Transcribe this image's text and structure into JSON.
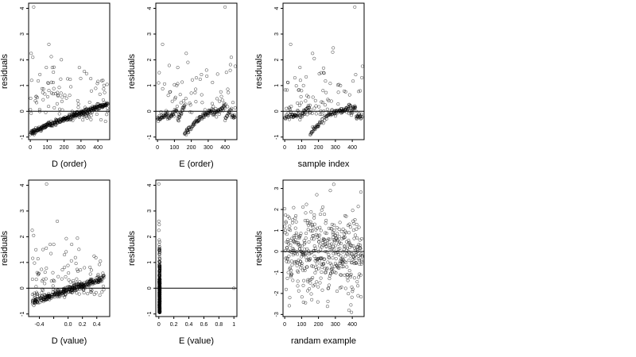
{
  "chart_data": [
    {
      "type": "scatter",
      "xlabel": "D (order)",
      "ylabel": "residuals",
      "xlim": [
        -10,
        470
      ],
      "ylim": [
        -1.1,
        4.2
      ],
      "xticks": [
        0,
        100,
        200,
        300,
        400
      ],
      "yticks": [
        -1,
        0,
        1,
        2,
        3,
        4
      ],
      "hline": 0,
      "pattern": "rising",
      "outliers": [
        [
          20,
          4.05
        ],
        [
          110,
          2.6
        ],
        [
          5,
          2.25
        ],
        [
          15,
          2.1
        ],
        [
          95,
          1.7
        ],
        [
          130,
          1.7
        ],
        [
          180,
          1.25
        ],
        [
          290,
          1.7
        ],
        [
          320,
          1.55
        ],
        [
          430,
          1.2
        ]
      ]
    },
    {
      "type": "scatter",
      "xlabel": "E (order)",
      "ylabel": "residuals",
      "xlim": [
        -10,
        470
      ],
      "ylim": [
        -1.1,
        4.2
      ],
      "xticks": [
        0,
        100,
        200,
        300,
        400
      ],
      "yticks": [
        -1,
        0,
        1,
        2,
        3,
        4
      ],
      "hline": 0,
      "pattern": "sawtooth",
      "outliers": [
        [
          30,
          2.6
        ],
        [
          170,
          2.25
        ],
        [
          400,
          4.05
        ],
        [
          460,
          1.75
        ],
        [
          10,
          1.5
        ],
        [
          120,
          1.7
        ],
        [
          290,
          1.6
        ],
        [
          180,
          1.9
        ],
        [
          230,
          1.3
        ]
      ]
    },
    {
      "type": "scatter",
      "xlabel": "sample index",
      "ylabel": "residuals",
      "xlim": [
        -10,
        470
      ],
      "ylim": [
        -1.1,
        4.2
      ],
      "xticks": [
        0,
        100,
        200,
        300,
        400
      ],
      "yticks": [
        -1,
        0,
        1,
        2,
        3,
        4
      ],
      "hline": 0,
      "pattern": "sawtooth2",
      "outliers": [
        [
          415,
          4.05
        ],
        [
          35,
          2.6
        ],
        [
          165,
          2.25
        ],
        [
          175,
          2.05
        ],
        [
          460,
          1.75
        ],
        [
          90,
          1.7
        ],
        [
          230,
          1.5
        ],
        [
          60,
          1.3
        ],
        [
          330,
          1.0
        ]
      ]
    },
    {
      "type": "scatter",
      "xlabel": "D (value)",
      "ylabel": "residuals",
      "xlim": [
        -0.55,
        0.58
      ],
      "ylim": [
        -1.1,
        4.2
      ],
      "xticks": [
        -0.4,
        -0.2,
        0.0,
        0.2,
        0.4
      ],
      "xtick_labels": [
        "-0.4",
        "",
        "0.0",
        "0.2",
        "0.4"
      ],
      "yticks": [
        -1,
        0,
        1,
        2,
        3,
        4
      ],
      "hline": 0,
      "pattern": "value",
      "outliers": [
        [
          -0.3,
          4.05
        ],
        [
          -0.15,
          2.6
        ],
        [
          -0.5,
          2.25
        ],
        [
          -0.48,
          2.05
        ],
        [
          -0.25,
          1.7
        ],
        [
          -0.2,
          1.7
        ],
        [
          0.05,
          1.7
        ],
        [
          -0.05,
          1.3
        ],
        [
          0.45,
          1.05
        ],
        [
          -0.35,
          1.5
        ]
      ]
    },
    {
      "type": "scatter",
      "xlabel": "E (value)",
      "ylabel": "residuals",
      "xlim": [
        -0.04,
        1.04
      ],
      "ylim": [
        -1.1,
        4.2
      ],
      "xticks": [
        0.0,
        0.2,
        0.4,
        0.6,
        0.8,
        1.0
      ],
      "yticks": [
        -1,
        0,
        1,
        2,
        3,
        4
      ],
      "hline": 0,
      "pattern": "evalue",
      "outliers": [
        [
          0.0,
          4.05
        ],
        [
          0.0,
          2.6
        ],
        [
          0.0,
          2.25
        ],
        [
          1.0,
          0.0
        ]
      ]
    },
    {
      "type": "scatter",
      "xlabel": "randam example",
      "ylabel": "residuals",
      "xlim": [
        -10,
        470
      ],
      "ylim": [
        -3.1,
        3.4
      ],
      "xticks": [
        0,
        100,
        200,
        300,
        400
      ],
      "yticks": [
        -3,
        -2,
        -1,
        0,
        1,
        2,
        3
      ],
      "hline": 0,
      "pattern": "random",
      "outliers": [
        [
          290,
          3.2
        ],
        [
          270,
          2.9
        ],
        [
          190,
          2.7
        ],
        [
          380,
          -2.8
        ],
        [
          395,
          -2.9
        ],
        [
          160,
          -2.3
        ],
        [
          30,
          -2.2
        ]
      ]
    }
  ]
}
